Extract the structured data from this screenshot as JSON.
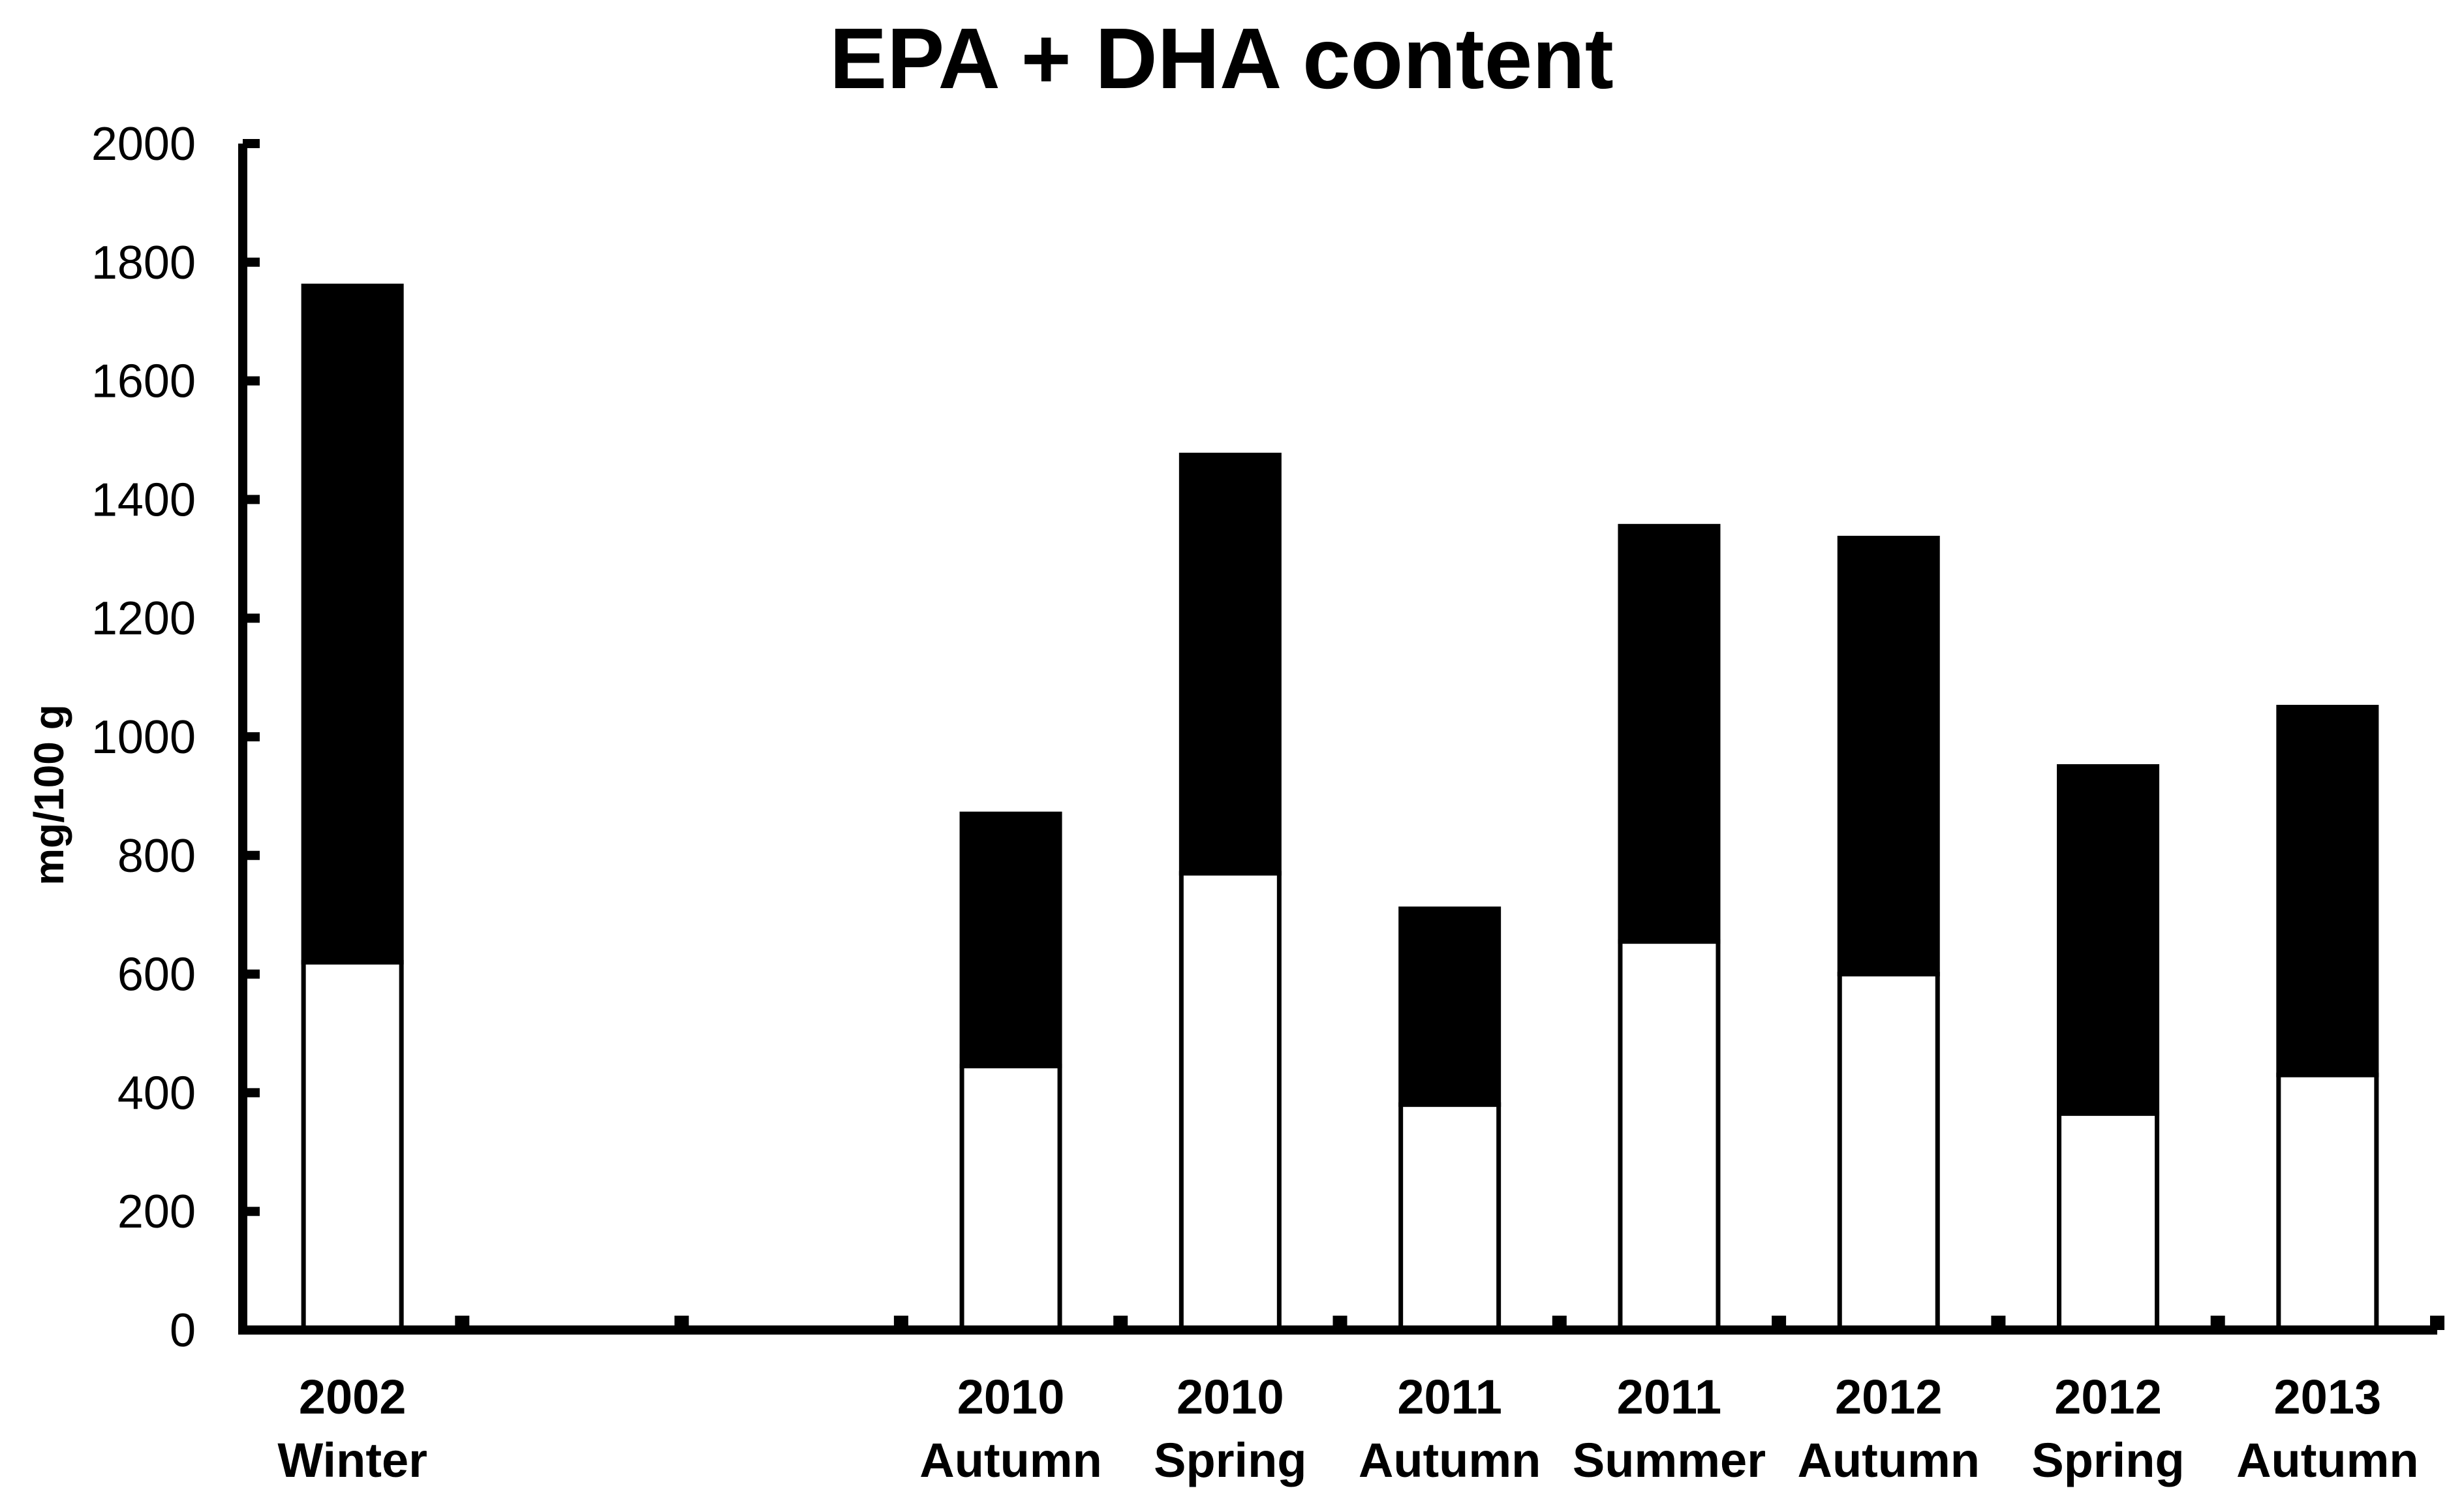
{
  "chart_data": {
    "type": "bar",
    "stacked": true,
    "title": "EPA + DHA content",
    "xlabel": "",
    "ylabel": "mg/100 g",
    "ylim": [
      0,
      2000
    ],
    "yticks": [
      "0",
      "200",
      "400",
      "600",
      "800",
      "1000",
      "1200",
      "1400",
      "1600",
      "1800",
      "2000"
    ],
    "grid": false,
    "legend": "none",
    "categories": [
      {
        "year": "2002",
        "season": "Winter"
      },
      {
        "year": "",
        "season": ""
      },
      {
        "year": "",
        "season": ""
      },
      {
        "year": "2010",
        "season": "Autumn"
      },
      {
        "year": "2010",
        "season": "Spring"
      },
      {
        "year": "2011",
        "season": "Autumn"
      },
      {
        "year": "2011",
        "season": "Summer"
      },
      {
        "year": "2012",
        "season": "Autumn"
      },
      {
        "year": "2012",
        "season": "Spring"
      },
      {
        "year": "2013",
        "season": "Autumn"
      }
    ],
    "series": [
      {
        "color": "#ffffff",
        "values": [
          620,
          null,
          null,
          445,
          770,
          380,
          655,
          600,
          365,
          430
        ]
      },
      {
        "color": "#000000",
        "values": [
          1140,
          null,
          null,
          425,
          705,
          330,
          700,
          735,
          585,
          620
        ]
      }
    ]
  }
}
